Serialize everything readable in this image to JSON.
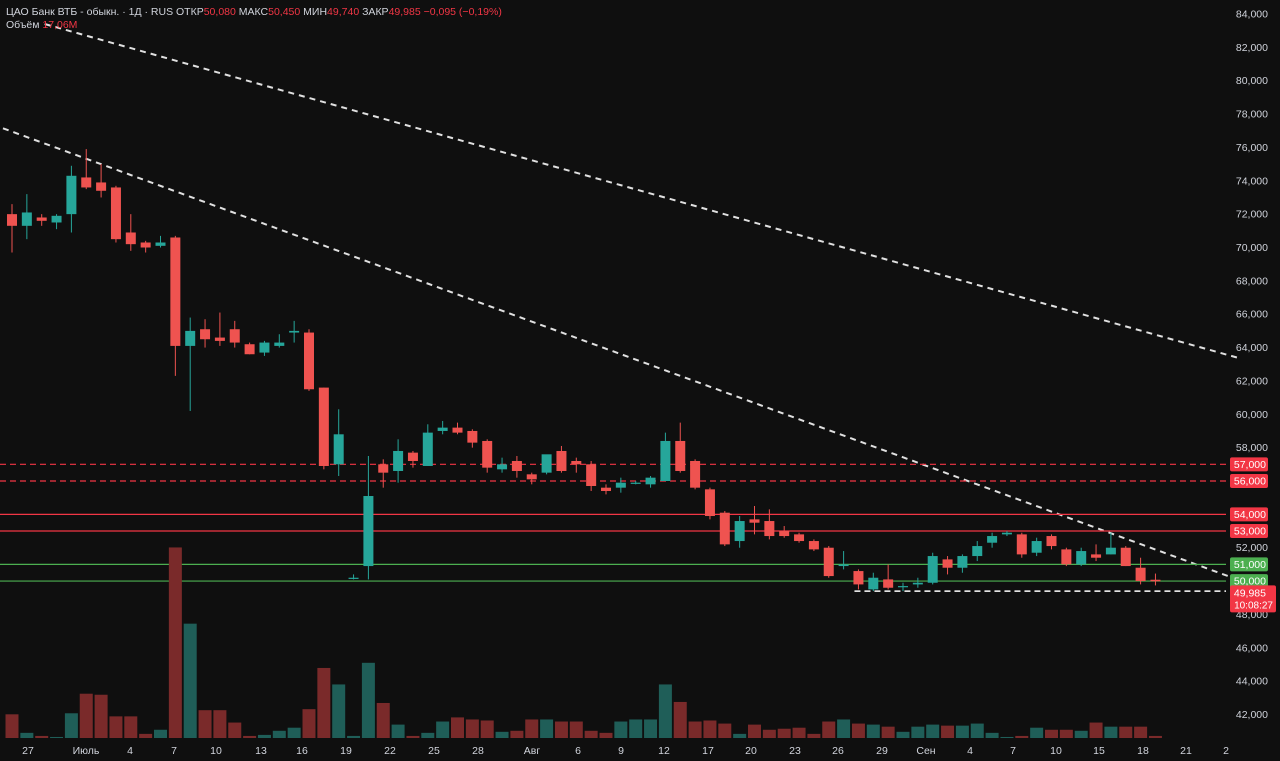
{
  "header": {
    "symbol": "ЦАО Банк ВТБ - обыкн. · 1Д · RUS",
    "open_label": "ОТКР",
    "open_value": "50,080",
    "high_label": "МАКС",
    "high_value": "50,450",
    "low_label": "МИН",
    "low_value": "49,740",
    "close_label": "ЗАКР",
    "close_value": "49,985",
    "change": "−0,095 (−0,19%)",
    "volume_label": "Объём",
    "volume_value": "17,06M"
  },
  "colors": {
    "background": "#0f0f0f",
    "up": "#26a69a",
    "down": "#ef5350",
    "resistance_line": "#f23645",
    "support_line": "#4caf50",
    "trendline": "#e0e0e0",
    "axis_text": "#d1d4dc"
  },
  "chart_data": {
    "type": "candlestick",
    "price_axis_ticks": [
      "84,000",
      "82,000",
      "80,000",
      "78,000",
      "76,000",
      "74,000",
      "72,000",
      "70,000",
      "68,000",
      "66,000",
      "64,000",
      "62,000",
      "60,000",
      "58,000",
      "56,000",
      "54,000",
      "52,000",
      "50,000",
      "48,000",
      "46,000",
      "44,000",
      "42,000"
    ],
    "ylim": [
      40.5,
      84.5
    ],
    "time_axis_labels": [
      "27",
      "Июль",
      "4",
      "7",
      "10",
      "13",
      "16",
      "19",
      "22",
      "25",
      "28",
      "Авг",
      "6",
      "9",
      "12",
      "17",
      "20",
      "23",
      "26",
      "29",
      "Сен",
      "4",
      "7",
      "10",
      "15",
      "18",
      "21",
      "2"
    ],
    "candles": [
      {
        "o": 72.0,
        "h": 72.6,
        "l": 69.7,
        "c": 71.3
      },
      {
        "o": 71.3,
        "h": 73.2,
        "l": 70.5,
        "c": 72.1
      },
      {
        "o": 71.8,
        "h": 72.0,
        "l": 71.3,
        "c": 71.6
      },
      {
        "o": 71.5,
        "h": 72.0,
        "l": 71.1,
        "c": 71.9
      },
      {
        "o": 72.0,
        "h": 74.9,
        "l": 70.9,
        "c": 74.3
      },
      {
        "o": 74.2,
        "h": 75.9,
        "l": 73.5,
        "c": 73.6
      },
      {
        "o": 73.9,
        "h": 75.0,
        "l": 73.0,
        "c": 73.4
      },
      {
        "o": 73.6,
        "h": 73.7,
        "l": 70.3,
        "c": 70.5
      },
      {
        "o": 70.9,
        "h": 72.0,
        "l": 69.8,
        "c": 70.2
      },
      {
        "o": 70.3,
        "h": 70.4,
        "l": 69.7,
        "c": 70.0
      },
      {
        "o": 70.1,
        "h": 70.7,
        "l": 70.0,
        "c": 70.3
      },
      {
        "o": 70.6,
        "h": 70.7,
        "l": 62.3,
        "c": 64.1
      },
      {
        "o": 64.1,
        "h": 65.8,
        "l": 60.2,
        "c": 65.0
      },
      {
        "o": 65.1,
        "h": 65.7,
        "l": 64.0,
        "c": 64.5
      },
      {
        "o": 64.6,
        "h": 66.1,
        "l": 64.1,
        "c": 64.4
      },
      {
        "o": 65.1,
        "h": 65.6,
        "l": 64.0,
        "c": 64.3
      },
      {
        "o": 64.2,
        "h": 64.3,
        "l": 63.6,
        "c": 63.6
      },
      {
        "o": 63.7,
        "h": 64.4,
        "l": 63.5,
        "c": 64.3
      },
      {
        "o": 64.1,
        "h": 64.8,
        "l": 64.0,
        "c": 64.3
      },
      {
        "o": 64.9,
        "h": 65.6,
        "l": 64.3,
        "c": 65.0
      },
      {
        "o": 64.9,
        "h": 65.1,
        "l": 61.4,
        "c": 61.5
      },
      {
        "o": 61.6,
        "h": 61.6,
        "l": 56.7,
        "c": 56.9
      },
      {
        "o": 57.0,
        "h": 60.3,
        "l": 56.3,
        "c": 58.8
      },
      {
        "o": 50.2,
        "h": 50.4,
        "l": 50.1,
        "c": 50.2
      },
      {
        "o": 50.9,
        "h": 57.5,
        "l": 50.1,
        "c": 55.1
      },
      {
        "o": 57.0,
        "h": 57.3,
        "l": 55.6,
        "c": 56.5
      },
      {
        "o": 56.6,
        "h": 58.5,
        "l": 55.9,
        "c": 57.8
      },
      {
        "o": 57.7,
        "h": 57.8,
        "l": 56.8,
        "c": 57.2
      },
      {
        "o": 56.9,
        "h": 59.4,
        "l": 56.9,
        "c": 58.9
      },
      {
        "o": 59.0,
        "h": 59.6,
        "l": 58.8,
        "c": 59.2
      },
      {
        "o": 59.2,
        "h": 59.5,
        "l": 58.8,
        "c": 58.9
      },
      {
        "o": 59.0,
        "h": 59.1,
        "l": 58.0,
        "c": 58.3
      },
      {
        "o": 58.4,
        "h": 58.5,
        "l": 56.5,
        "c": 56.8
      },
      {
        "o": 56.7,
        "h": 57.4,
        "l": 56.5,
        "c": 57.0
      },
      {
        "o": 57.2,
        "h": 57.5,
        "l": 56.2,
        "c": 56.6
      },
      {
        "o": 56.4,
        "h": 56.5,
        "l": 55.8,
        "c": 56.1
      },
      {
        "o": 56.5,
        "h": 57.4,
        "l": 56.4,
        "c": 57.6
      },
      {
        "o": 57.8,
        "h": 58.1,
        "l": 56.5,
        "c": 56.6
      },
      {
        "o": 57.2,
        "h": 57.4,
        "l": 56.5,
        "c": 57.0
      },
      {
        "o": 57.0,
        "h": 57.2,
        "l": 55.4,
        "c": 55.7
      },
      {
        "o": 55.6,
        "h": 55.8,
        "l": 55.2,
        "c": 55.4
      },
      {
        "o": 55.6,
        "h": 56.2,
        "l": 55.3,
        "c": 55.9
      },
      {
        "o": 55.9,
        "h": 56.0,
        "l": 55.8,
        "c": 55.9
      },
      {
        "o": 55.8,
        "h": 56.3,
        "l": 55.6,
        "c": 56.2
      },
      {
        "o": 56.0,
        "h": 58.9,
        "l": 56.0,
        "c": 58.4
      },
      {
        "o": 58.4,
        "h": 59.5,
        "l": 56.5,
        "c": 56.6
      },
      {
        "o": 57.2,
        "h": 57.3,
        "l": 55.5,
        "c": 55.6
      },
      {
        "o": 55.5,
        "h": 55.6,
        "l": 53.7,
        "c": 53.9
      },
      {
        "o": 54.1,
        "h": 54.2,
        "l": 52.1,
        "c": 52.2
      },
      {
        "o": 52.4,
        "h": 53.9,
        "l": 52.0,
        "c": 53.6
      },
      {
        "o": 53.7,
        "h": 54.5,
        "l": 52.8,
        "c": 53.5
      },
      {
        "o": 53.6,
        "h": 54.3,
        "l": 52.5,
        "c": 52.7
      },
      {
        "o": 53.0,
        "h": 53.3,
        "l": 52.6,
        "c": 52.7
      },
      {
        "o": 52.8,
        "h": 52.9,
        "l": 52.3,
        "c": 52.4
      },
      {
        "o": 52.4,
        "h": 52.5,
        "l": 51.8,
        "c": 51.9
      },
      {
        "o": 52.0,
        "h": 52.1,
        "l": 50.2,
        "c": 50.3
      },
      {
        "o": 50.9,
        "h": 51.8,
        "l": 50.7,
        "c": 51.0
      },
      {
        "o": 50.6,
        "h": 50.7,
        "l": 49.5,
        "c": 49.8
      },
      {
        "o": 49.5,
        "h": 50.5,
        "l": 49.4,
        "c": 50.2
      },
      {
        "o": 50.1,
        "h": 51.0,
        "l": 49.5,
        "c": 49.6
      },
      {
        "o": 49.7,
        "h": 49.9,
        "l": 49.4,
        "c": 49.7
      },
      {
        "o": 49.8,
        "h": 50.2,
        "l": 49.6,
        "c": 49.9
      },
      {
        "o": 49.9,
        "h": 51.7,
        "l": 49.8,
        "c": 51.5
      },
      {
        "o": 51.3,
        "h": 51.5,
        "l": 50.4,
        "c": 50.8
      },
      {
        "o": 50.8,
        "h": 51.6,
        "l": 50.5,
        "c": 51.5
      },
      {
        "o": 51.5,
        "h": 52.4,
        "l": 51.2,
        "c": 52.1
      },
      {
        "o": 52.3,
        "h": 52.9,
        "l": 52.0,
        "c": 52.7
      },
      {
        "o": 52.8,
        "h": 53.0,
        "l": 52.7,
        "c": 52.9
      },
      {
        "o": 52.8,
        "h": 52.9,
        "l": 51.4,
        "c": 51.6
      },
      {
        "o": 51.7,
        "h": 52.6,
        "l": 51.5,
        "c": 52.4
      },
      {
        "o": 52.7,
        "h": 52.8,
        "l": 51.9,
        "c": 52.1
      },
      {
        "o": 51.9,
        "h": 52.0,
        "l": 50.9,
        "c": 51.0
      },
      {
        "o": 51.0,
        "h": 52.0,
        "l": 50.9,
        "c": 51.8
      },
      {
        "o": 51.6,
        "h": 52.2,
        "l": 51.2,
        "c": 51.4
      },
      {
        "o": 51.6,
        "h": 52.9,
        "l": 51.6,
        "c": 52.0
      },
      {
        "o": 52.0,
        "h": 52.1,
        "l": 50.9,
        "c": 50.9
      },
      {
        "o": 50.8,
        "h": 51.4,
        "l": 49.8,
        "c": 50.0
      },
      {
        "o": 50.08,
        "h": 50.45,
        "l": 49.74,
        "c": 49.985
      }
    ],
    "volumes": [
      2.3,
      0.5,
      0.2,
      0.1,
      2.4,
      4.3,
      4.2,
      2.1,
      2.1,
      0.4,
      0.8,
      18.5,
      11.1,
      2.7,
      2.7,
      1.5,
      0.2,
      0.3,
      0.7,
      1.0,
      2.8,
      6.8,
      5.2,
      0.2,
      7.3,
      3.4,
      1.3,
      0.2,
      0.5,
      1.6,
      2.0,
      1.8,
      1.7,
      0.6,
      0.7,
      1.8,
      1.8,
      1.6,
      1.6,
      0.7,
      0.5,
      1.6,
      1.8,
      1.8,
      5.2,
      3.5,
      1.6,
      1.7,
      1.4,
      0.4,
      1.3,
      0.8,
      0.9,
      1.0,
      0.4,
      1.6,
      1.8,
      1.4,
      1.3,
      1.1,
      0.6,
      1.1,
      1.3,
      1.2,
      1.2,
      1.4,
      0.5,
      0.1,
      0.2,
      1.0,
      0.8,
      0.8,
      0.7,
      1.5,
      1.1,
      1.1,
      1.1,
      0.2
    ],
    "horizontal_levels": [
      {
        "price": 57.0,
        "label": "57,000",
        "style": "dashed",
        "kind": "resistance"
      },
      {
        "price": 56.0,
        "label": "56,000",
        "style": "dashed",
        "kind": "resistance"
      },
      {
        "price": 54.0,
        "label": "54,000",
        "style": "solid",
        "kind": "resistance"
      },
      {
        "price": 53.0,
        "label": "53,000",
        "style": "solid",
        "kind": "resistance"
      },
      {
        "price": 51.0,
        "label": "51,000",
        "style": "solid",
        "kind": "support"
      },
      {
        "price": 50.0,
        "label": "50,000",
        "style": "solid",
        "kind": "support"
      }
    ],
    "trendlines": [
      {
        "from": {
          "index": -2.0,
          "price": 77.6
        },
        "to": {
          "index": 82.5,
          "price": 50.1
        }
      },
      {
        "from": {
          "index": 2.2,
          "price": 83.4
        },
        "to": {
          "index": 82.5,
          "price": 63.4
        }
      }
    ],
    "low_marker": {
      "price": 49.4,
      "from_index": 57,
      "to_index": 82
    },
    "last_price": {
      "label": "49,985",
      "countdown": "10:08:27"
    }
  }
}
